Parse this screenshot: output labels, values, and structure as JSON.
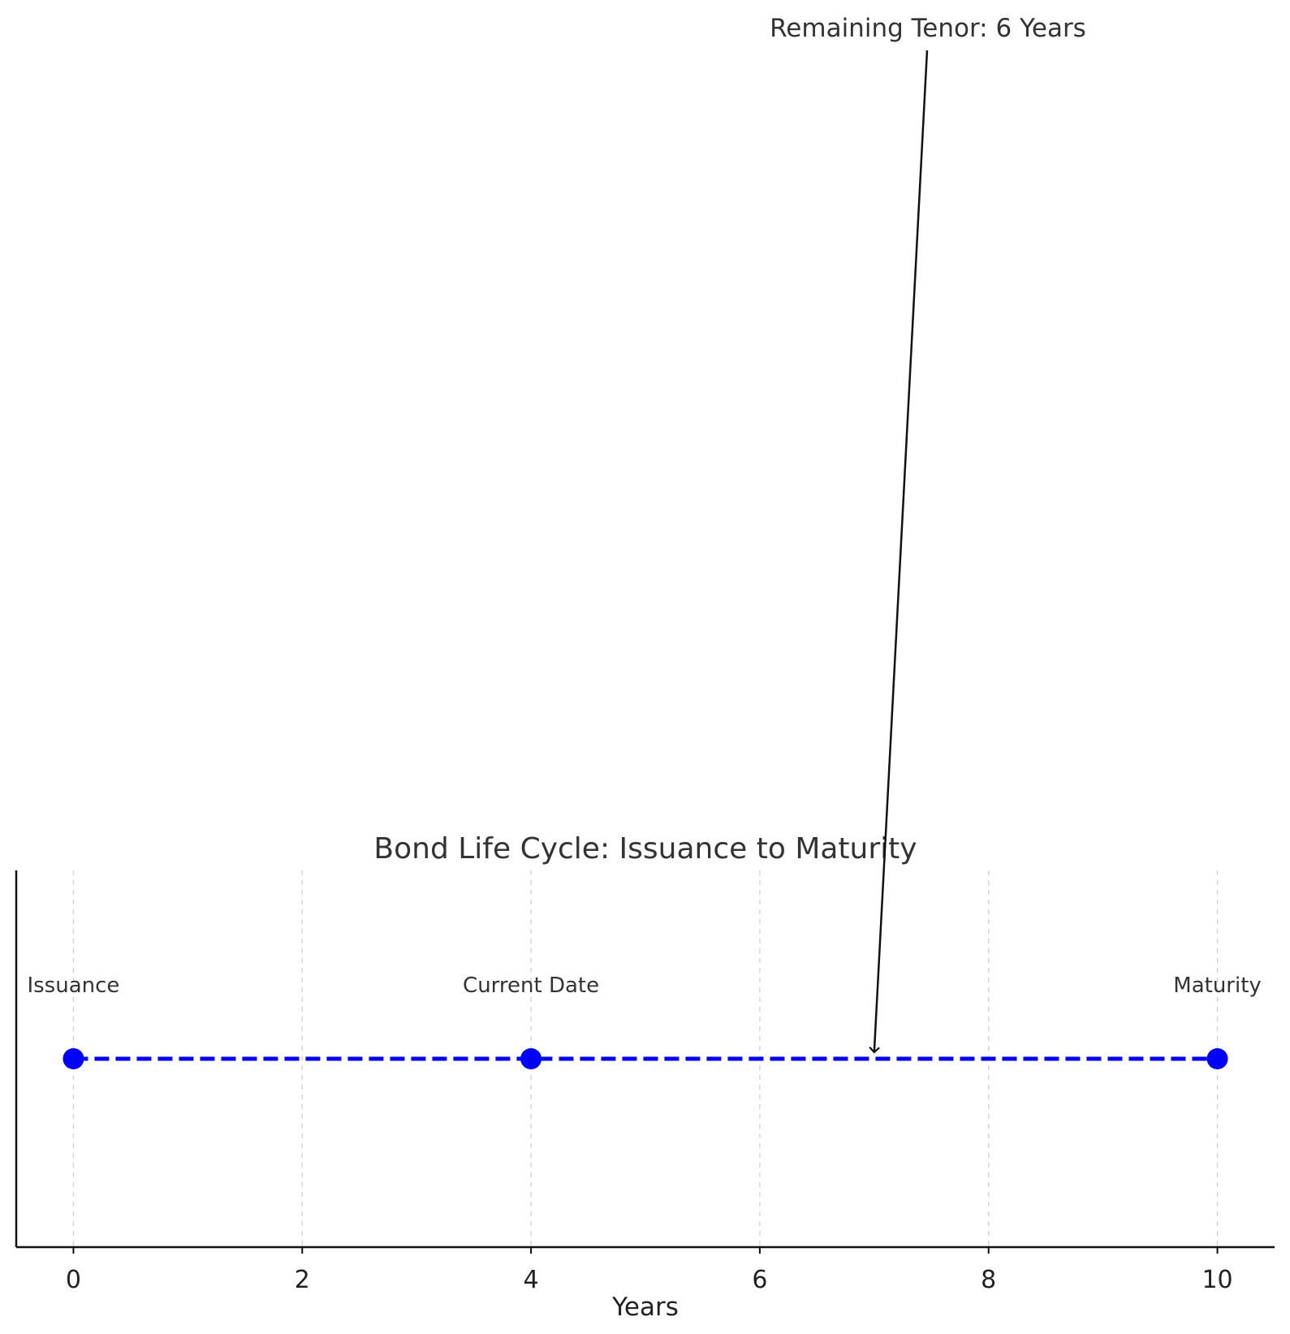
{
  "chart_data": {
    "type": "line",
    "title": "Bond Life Cycle: Issuance to Maturity",
    "xlabel": "Years",
    "ylabel": "",
    "xlim": [
      -0.5,
      10.5
    ],
    "ylim": [
      -1,
      1
    ],
    "xticks": [
      0,
      2,
      4,
      6,
      8,
      10
    ],
    "grid": "x-dashed",
    "series": [
      {
        "x": [
          0,
          4,
          10
        ],
        "y": [
          0,
          0,
          0
        ],
        "color": "#0000ff",
        "linestyle": "dashed",
        "marker": "circle"
      }
    ],
    "point_labels": [
      "Issuance",
      "Current Date",
      "Maturity"
    ],
    "annotation": {
      "text": "Remaining Tenor: 6 Years",
      "arrow_to": {
        "x": 7,
        "y": 0
      }
    }
  }
}
